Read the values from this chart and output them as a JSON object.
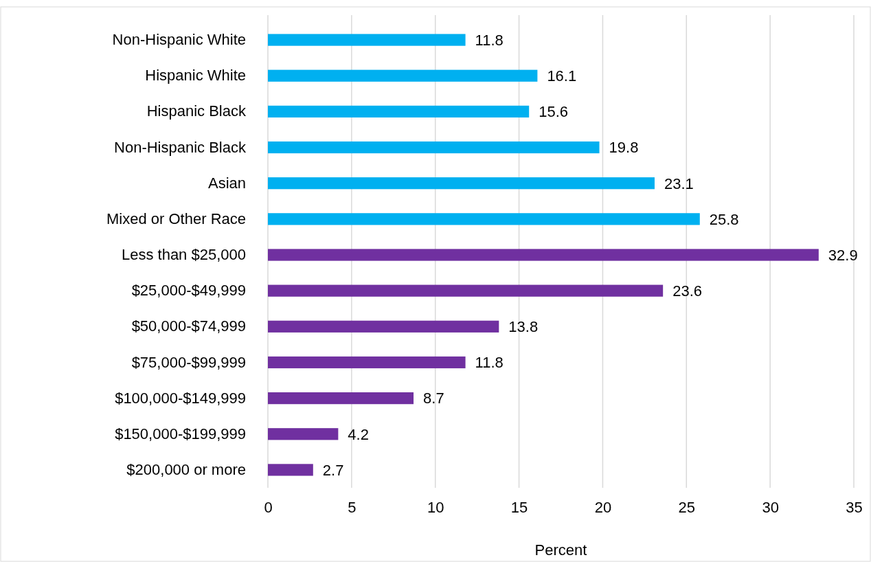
{
  "chart_data": {
    "type": "bar",
    "orientation": "horizontal",
    "xlabel": "Percent",
    "categories": [
      "Non-Hispanic White",
      "Hispanic White",
      "Hispanic Black",
      "Non-Hispanic Black",
      "Asian",
      "Mixed or Other Race",
      "Less than $25,000",
      "$25,000-$49,999",
      "$50,000-$74,999",
      "$75,000-$99,999",
      "$100,000-$149,999",
      "$150,000-$199,999",
      "$200,000 or more"
    ],
    "values": [
      11.8,
      16.1,
      15.6,
      19.8,
      23.1,
      25.8,
      32.9,
      23.6,
      13.8,
      11.8,
      8.7,
      4.2,
      2.7
    ],
    "colors": [
      "#00b0f0",
      "#00b0f0",
      "#00b0f0",
      "#00b0f0",
      "#00b0f0",
      "#00b0f0",
      "#7030a0",
      "#7030a0",
      "#7030a0",
      "#7030a0",
      "#7030a0",
      "#7030a0",
      "#7030a0"
    ],
    "xlim": [
      0,
      35
    ],
    "xticks": [
      0,
      5,
      10,
      15,
      20,
      25,
      30,
      35
    ],
    "grid": "x",
    "data_labels": true
  }
}
